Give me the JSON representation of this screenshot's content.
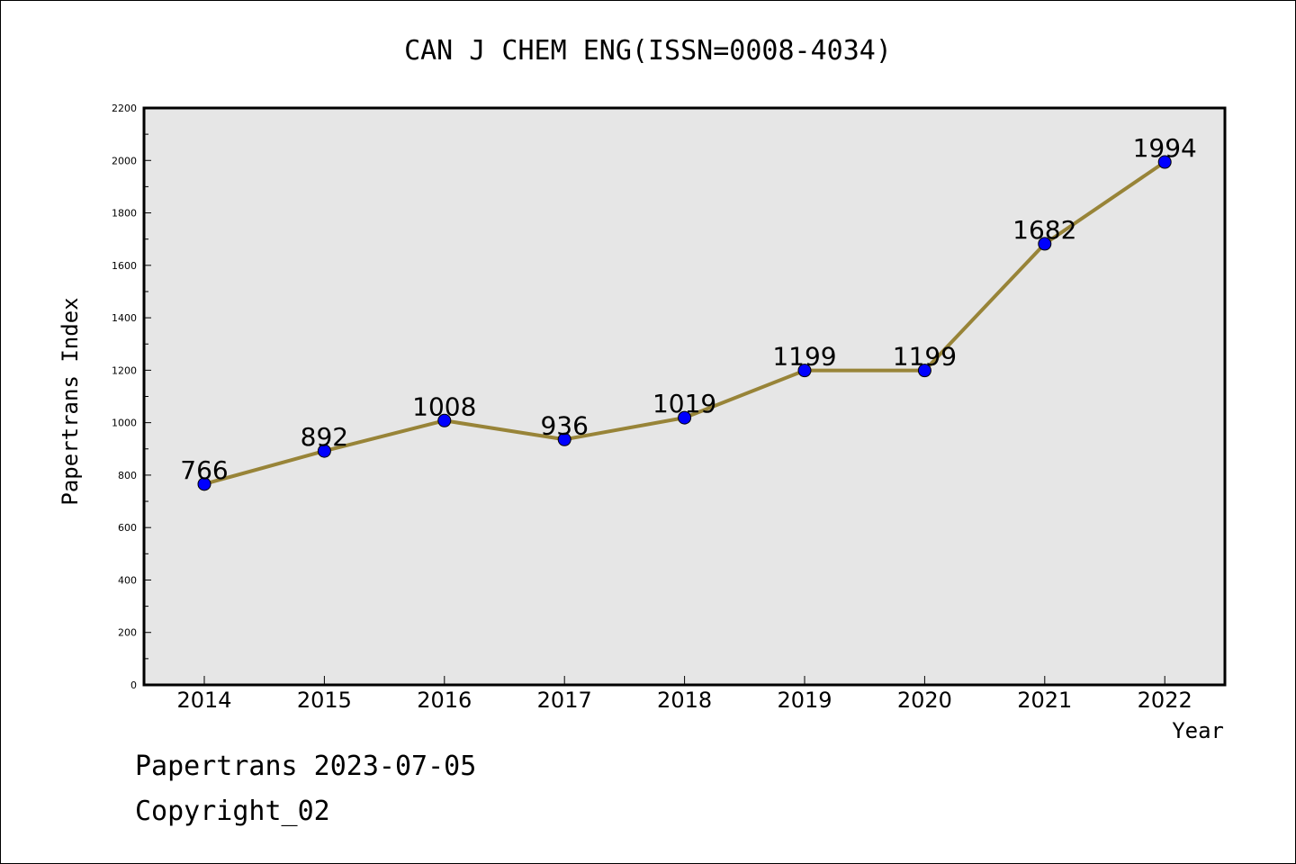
{
  "chart_data": {
    "type": "line",
    "title": "CAN J CHEM ENG(ISSN=0008-4034)",
    "xlabel": "Year",
    "ylabel": "Papertrans Index",
    "categories": [
      "2014",
      "2015",
      "2016",
      "2017",
      "2018",
      "2019",
      "2020",
      "2021",
      "2022"
    ],
    "values": [
      766,
      892,
      1008,
      936,
      1019,
      1199,
      1199,
      1682,
      1994
    ],
    "ylim": [
      0,
      2200
    ],
    "yticks": [
      0,
      200,
      400,
      600,
      800,
      1000,
      1200,
      1400,
      1600,
      1800,
      2000,
      2200
    ],
    "grid": false,
    "line_color": "#988438",
    "marker_color": "#0000ff",
    "plot_background": "#e6e6e6"
  },
  "footer": {
    "line1": "Papertrans 2023-07-05",
    "line2": "Copyright_02"
  }
}
